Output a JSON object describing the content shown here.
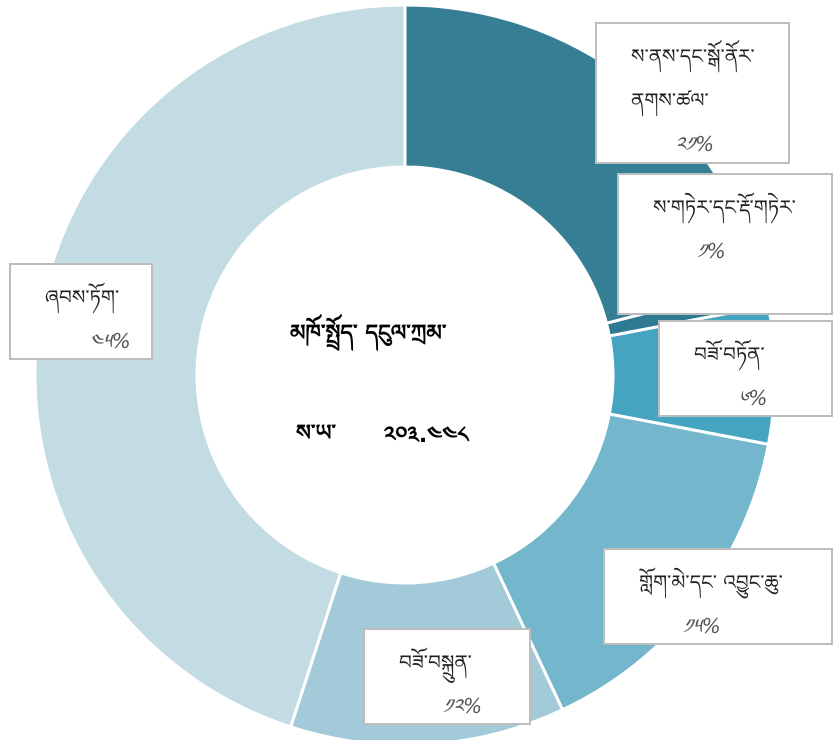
{
  "chart_data": {
    "type": "donut",
    "center_title": "མཁོ་སྤྲོད་ དངུལ་ཀྲམ་",
    "total_label": "ས་ཡ་",
    "total_value": "༢༠༣.༤༤༨",
    "categories": [
      "ས་ནས་དང་སྒོ་ནོར་ནགས་ཚལ་",
      "ས་གཏེར་དང་རྡོ་གཏེར་",
      "བཟོ་བཏོན་",
      "གློག་མེ་དང་ འབྱུང་ཆུ་",
      "བཟོ་བསྐྲུན་",
      "ཞབས་ཏོག་"
    ],
    "values": [
      21,
      1,
      6,
      15,
      12,
      45
    ],
    "value_labels": [
      "༢༡%",
      "༡%",
      "༦%",
      "༡༥%",
      "༡༢%",
      "༤༥%"
    ],
    "colors": [
      "#367e94",
      "#2f7a93",
      "#45a4bf",
      "#74b7cc",
      "#a2cad9",
      "#c3dce4"
    ]
  }
}
